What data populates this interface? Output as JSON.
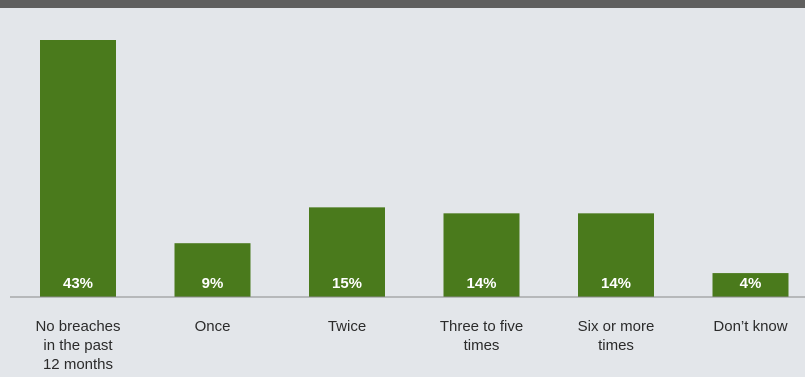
{
  "chart_data": {
    "type": "bar",
    "categories": [
      [
        "No breaches",
        "in the past",
        "12 months"
      ],
      [
        "Once"
      ],
      [
        "Twice"
      ],
      [
        "Three to five",
        "times"
      ],
      [
        "Six or more",
        "times"
      ],
      [
        "Don’t know"
      ]
    ],
    "values": [
      43,
      9,
      15,
      14,
      14,
      4
    ],
    "value_labels": [
      "43%",
      "9%",
      "15%",
      "14%",
      "14%",
      "4%"
    ],
    "ylim": [
      0,
      45
    ],
    "grid": false,
    "colors": {
      "bar": "#4a7a1c",
      "background": "#e3e6ea",
      "header_bar": "#5f5f5f",
      "axis": "#8a8a8a"
    }
  }
}
